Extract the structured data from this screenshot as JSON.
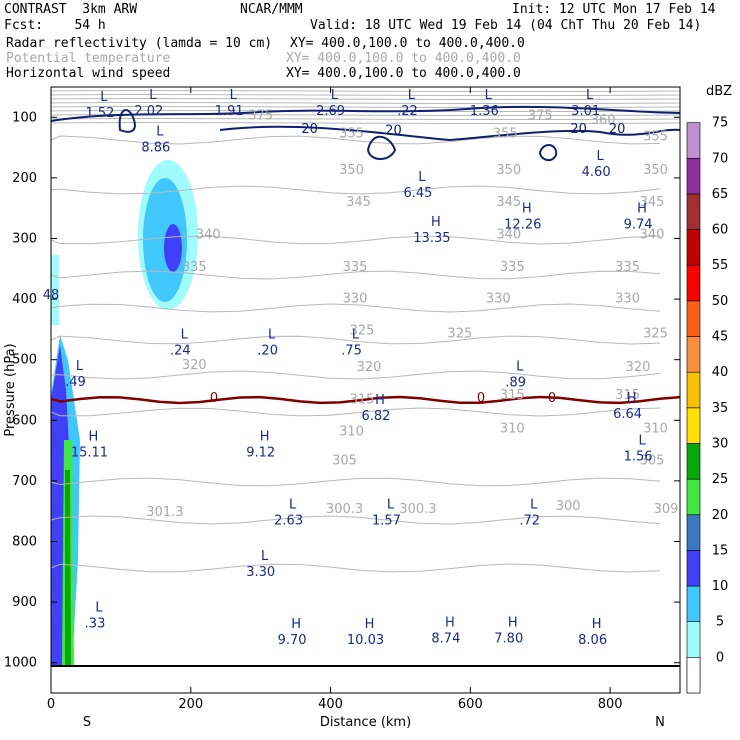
{
  "header": {
    "model": "CONTRAST  3km ARW",
    "org": "NCAR/MMM",
    "init": "Init: 12 UTC Mon 17 Feb 14",
    "fcst": "Fcst:    54 h",
    "valid": "Valid: 18 UTC Wed 19 Feb 14 (04 ChT Thu 20 Feb 14)",
    "field1": "Radar reflectivity (lamda = 10 cm)",
    "field1_xy": "XY= 400.0,100.0 to 400.0,400.0",
    "field2": "Potential temperature",
    "field2_xy": "XY= 400.0,100.0 to 400.0,400.0",
    "field3": "Horizontal wind speed",
    "field3_xy": "XY= 400.0,100.0 to 400.0,400.0"
  },
  "chart_data": {
    "type": "heatmap",
    "xlabel": "Distance (km)",
    "ylabel": "Pressure (hPa)",
    "xlim": [
      0,
      900
    ],
    "ylim": [
      1050,
      50
    ],
    "x_ticks": [
      0,
      200,
      400,
      600,
      800
    ],
    "y_ticks": [
      100,
      200,
      300,
      400,
      500,
      600,
      700,
      800,
      900,
      1000
    ],
    "x_end_labels": {
      "left": "S",
      "right": "N"
    },
    "colorbar": {
      "unit": "dBZ",
      "levels": [
        0,
        5,
        10,
        15,
        20,
        25,
        30,
        35,
        40,
        45,
        50,
        55,
        60,
        65,
        70,
        75
      ],
      "colors": [
        "#ffffff",
        "#a0fcfc",
        "#40c8fc",
        "#4040f8",
        "#3c78c0",
        "#40e840",
        "#08a808",
        "#ffe000",
        "#f8c000",
        "#f89040",
        "#fc6018",
        "#fc0000",
        "#c00000",
        "#a03030",
        "#9030a0",
        "#c090d0"
      ]
    },
    "theta_labels": [
      {
        "x": 300,
        "p": 95,
        "text": "375"
      },
      {
        "x": 700,
        "p": 95,
        "text": "375"
      },
      {
        "x": 790,
        "p": 103,
        "text": "360"
      },
      {
        "x": 430,
        "p": 125,
        "text": "355"
      },
      {
        "x": 650,
        "p": 125,
        "text": "355"
      },
      {
        "x": 865,
        "p": 130,
        "text": "355"
      },
      {
        "x": 430,
        "p": 185,
        "text": "350"
      },
      {
        "x": 655,
        "p": 185,
        "text": "350"
      },
      {
        "x": 865,
        "p": 185,
        "text": "350"
      },
      {
        "x": 440,
        "p": 238,
        "text": "345"
      },
      {
        "x": 655,
        "p": 238,
        "text": "345"
      },
      {
        "x": 860,
        "p": 238,
        "text": "345"
      },
      {
        "x": 225,
        "p": 292,
        "text": "340"
      },
      {
        "x": 655,
        "p": 292,
        "text": "340"
      },
      {
        "x": 860,
        "p": 292,
        "text": "340"
      },
      {
        "x": 205,
        "p": 345,
        "text": "335"
      },
      {
        "x": 435,
        "p": 345,
        "text": "335"
      },
      {
        "x": 660,
        "p": 345,
        "text": "335"
      },
      {
        "x": 825,
        "p": 345,
        "text": "335"
      },
      {
        "x": 435,
        "p": 397,
        "text": "330"
      },
      {
        "x": 640,
        "p": 397,
        "text": "330"
      },
      {
        "x": 825,
        "p": 397,
        "text": "330"
      },
      {
        "x": 445,
        "p": 450,
        "text": "325"
      },
      {
        "x": 585,
        "p": 455,
        "text": "325"
      },
      {
        "x": 865,
        "p": 455,
        "text": "325"
      },
      {
        "x": 205,
        "p": 507,
        "text": "320"
      },
      {
        "x": 455,
        "p": 510,
        "text": "320"
      },
      {
        "x": 840,
        "p": 510,
        "text": "320"
      },
      {
        "x": 445,
        "p": 564,
        "text": "315"
      },
      {
        "x": 660,
        "p": 557,
        "text": "315"
      },
      {
        "x": 825,
        "p": 557,
        "text": "315"
      },
      {
        "x": 430,
        "p": 617,
        "text": "310"
      },
      {
        "x": 660,
        "p": 612,
        "text": "310"
      },
      {
        "x": 865,
        "p": 612,
        "text": "310"
      },
      {
        "x": 420,
        "p": 665,
        "text": "305"
      },
      {
        "x": 860,
        "p": 665,
        "text": "305"
      },
      {
        "x": 163,
        "p": 750,
        "text": "301.3"
      },
      {
        "x": 420,
        "p": 745,
        "text": "300.3"
      },
      {
        "x": 525,
        "p": 745,
        "text": "300.3"
      },
      {
        "x": 740,
        "p": 740,
        "text": "300"
      },
      {
        "x": 880,
        "p": 745,
        "text": "309"
      }
    ],
    "wind_labels": [
      {
        "x": 370,
        "p": 118,
        "text": "20"
      },
      {
        "x": 490,
        "p": 120,
        "text": "20"
      },
      {
        "x": 755,
        "p": 118,
        "text": "20"
      },
      {
        "x": 810,
        "p": 118,
        "text": "20"
      }
    ],
    "freezing_label": "0",
    "extrema": [
      {
        "x": 70,
        "p": 88,
        "type": "L",
        "value": "1.52"
      },
      {
        "x": 140,
        "p": 85,
        "type": "L",
        "value": "2.02"
      },
      {
        "x": 255,
        "p": 85,
        "type": "L",
        "value": "1.91"
      },
      {
        "x": 400,
        "p": 85,
        "type": "L",
        "value": "2.69"
      },
      {
        "x": 510,
        "p": 85,
        "type": "L",
        "value": ".22"
      },
      {
        "x": 620,
        "p": 85,
        "type": "L",
        "value": "1.36"
      },
      {
        "x": 765,
        "p": 85,
        "type": "L",
        "value": "3.01"
      },
      {
        "x": 150,
        "p": 145,
        "type": "L",
        "value": "8.86"
      },
      {
        "x": 780,
        "p": 185,
        "type": "L",
        "value": "4.60"
      },
      {
        "x": 525,
        "p": 220,
        "type": "L",
        "value": "6.45"
      },
      {
        "x": 675,
        "p": 272,
        "type": "H",
        "value": "12.26"
      },
      {
        "x": 840,
        "p": 272,
        "type": "H",
        "value": "9.74"
      },
      {
        "x": 545,
        "p": 294,
        "type": "H",
        "value": "13.35"
      },
      {
        "x": 0,
        "p": 388,
        "type": "",
        "value": "48"
      },
      {
        "x": 185,
        "p": 480,
        "type": "L",
        "value": ".24"
      },
      {
        "x": 310,
        "p": 480,
        "type": "L",
        "value": ".20"
      },
      {
        "x": 430,
        "p": 480,
        "type": "L",
        "value": ".75"
      },
      {
        "x": 35,
        "p": 532,
        "type": "L",
        "value": ".49"
      },
      {
        "x": 665,
        "p": 533,
        "type": "L",
        "value": ".89"
      },
      {
        "x": 465,
        "p": 588,
        "type": "H",
        "value": "6.82"
      },
      {
        "x": 825,
        "p": 585,
        "type": "H",
        "value": "6.64"
      },
      {
        "x": 55,
        "p": 648,
        "type": "H",
        "value": "15.11"
      },
      {
        "x": 300,
        "p": 648,
        "type": "H",
        "value": "9.12"
      },
      {
        "x": 840,
        "p": 655,
        "type": "L",
        "value": "1.56"
      },
      {
        "x": 340,
        "p": 760,
        "type": "L",
        "value": "2.63"
      },
      {
        "x": 480,
        "p": 760,
        "type": "L",
        "value": "1.57"
      },
      {
        "x": 685,
        "p": 760,
        "type": "L",
        "value": ".72"
      },
      {
        "x": 300,
        "p": 845,
        "type": "L",
        "value": "3.30"
      },
      {
        "x": 63,
        "p": 930,
        "type": "L",
        "value": ".33"
      },
      {
        "x": 345,
        "p": 958,
        "type": "H",
        "value": "9.70"
      },
      {
        "x": 450,
        "p": 958,
        "type": "H",
        "value": "10.03"
      },
      {
        "x": 565,
        "p": 955,
        "type": "H",
        "value": "8.74"
      },
      {
        "x": 655,
        "p": 955,
        "type": "H",
        "value": "7.80"
      },
      {
        "x": 775,
        "p": 958,
        "type": "H",
        "value": "8.06"
      }
    ]
  }
}
